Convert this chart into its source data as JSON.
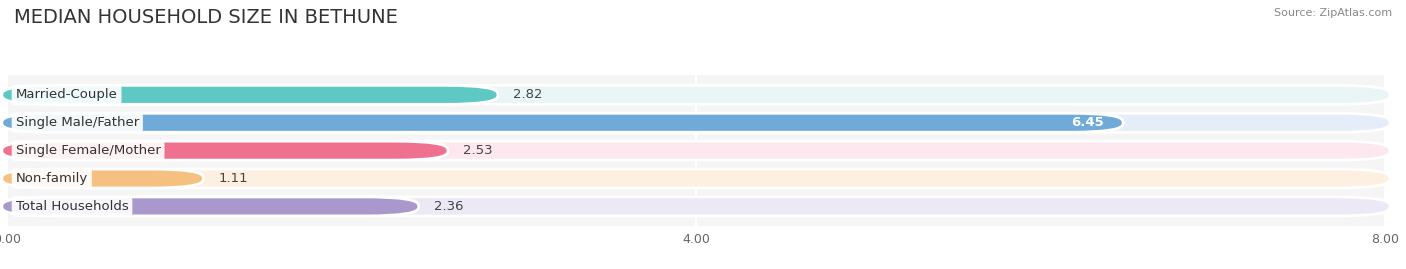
{
  "title": "MEDIAN HOUSEHOLD SIZE IN BETHUNE",
  "source": "Source: ZipAtlas.com",
  "categories": [
    "Married-Couple",
    "Single Male/Father",
    "Single Female/Mother",
    "Non-family",
    "Total Households"
  ],
  "values": [
    2.82,
    6.45,
    2.53,
    1.11,
    2.36
  ],
  "bar_colors": [
    "#5ec8c4",
    "#6faad8",
    "#f07090",
    "#f5c080",
    "#a898cc"
  ],
  "bar_bg_colors": [
    "#eaf6f6",
    "#e5eef8",
    "#fce8ee",
    "#fdf0e0",
    "#ece8f5"
  ],
  "value_colors": [
    "#555555",
    "#ffffff",
    "#555555",
    "#555555",
    "#555555"
  ],
  "xlim": [
    0,
    8.0
  ],
  "xtick_labels": [
    "0.00",
    "4.00",
    "8.00"
  ],
  "xtick_values": [
    0.0,
    4.0,
    8.0
  ],
  "background_color": "#ffffff",
  "plot_bg_color": "#f5f5f5",
  "bar_height": 0.62,
  "label_fontsize": 9.5,
  "value_fontsize": 9.5,
  "title_fontsize": 14
}
